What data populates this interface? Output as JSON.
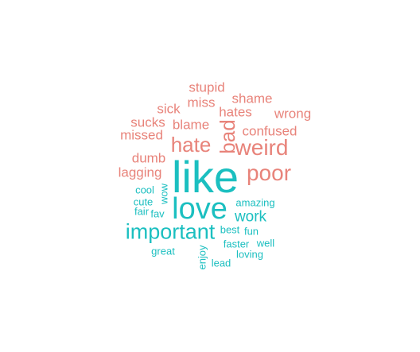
{
  "colors": {
    "negative": "#E8837A",
    "positive": "#1BBFC0"
  },
  "words": {
    "stupid": "stupid",
    "shame": "shame",
    "miss": "miss",
    "sick": "sick",
    "hates": "hates",
    "wrong": "wrong",
    "sucks": "sucks",
    "blame": "blame",
    "confused": "confused",
    "missed": "missed",
    "bad": "bad",
    "hate": "hate",
    "weird": "weird",
    "dumb": "dumb",
    "poor": "poor",
    "lagging": "lagging",
    "like": "like",
    "cool": "cool",
    "wow": "wow",
    "cute": "cute",
    "love": "love",
    "amazing": "amazing",
    "fair": "fair",
    "fav": "fav",
    "work": "work",
    "important": "important",
    "best": "best",
    "fun": "fun",
    "faster": "faster",
    "well": "well",
    "great": "great",
    "enjoy": "enjoy",
    "loving": "loving",
    "lead": "lead"
  }
}
